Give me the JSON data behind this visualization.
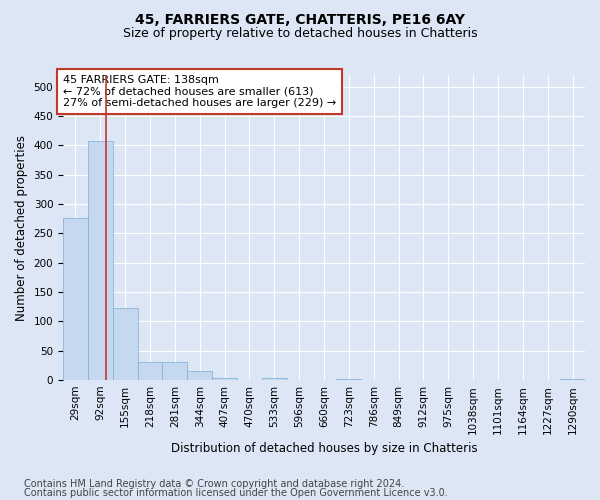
{
  "title1": "45, FARRIERS GATE, CHATTERIS, PE16 6AY",
  "title2": "Size of property relative to detached houses in Chatteris",
  "xlabel": "Distribution of detached houses by size in Chatteris",
  "ylabel": "Number of detached properties",
  "bin_labels": [
    "29sqm",
    "92sqm",
    "155sqm",
    "218sqm",
    "281sqm",
    "344sqm",
    "407sqm",
    "470sqm",
    "533sqm",
    "596sqm",
    "660sqm",
    "723sqm",
    "786sqm",
    "849sqm",
    "912sqm",
    "975sqm",
    "1038sqm",
    "1101sqm",
    "1164sqm",
    "1227sqm",
    "1290sqm"
  ],
  "bar_heights": [
    277,
    408,
    122,
    30,
    30,
    15,
    4,
    0,
    3,
    0,
    0,
    2,
    0,
    0,
    0,
    0,
    0,
    0,
    0,
    0,
    2
  ],
  "bar_color": "#c5d8f0",
  "bar_edge_color": "#7aaed6",
  "property_bin": 1,
  "vline_color": "#c0392b",
  "annotation_text": "45 FARRIERS GATE: 138sqm\n← 72% of detached houses are smaller (613)\n27% of semi-detached houses are larger (229) →",
  "annotation_box_color": "white",
  "annotation_box_edge": "#c0392b",
  "ylim": [
    0,
    520
  ],
  "yticks": [
    0,
    50,
    100,
    150,
    200,
    250,
    300,
    350,
    400,
    450,
    500
  ],
  "footnote1": "Contains HM Land Registry data © Crown copyright and database right 2024.",
  "footnote2": "Contains public sector information licensed under the Open Government Licence v3.0.",
  "bg_color": "#dce6f5",
  "plot_bg_color": "#dce6f5",
  "grid_color": "white",
  "title_fontsize": 10,
  "subtitle_fontsize": 9,
  "axis_label_fontsize": 8.5,
  "tick_fontsize": 7.5,
  "annotation_fontsize": 8,
  "footnote_fontsize": 7
}
